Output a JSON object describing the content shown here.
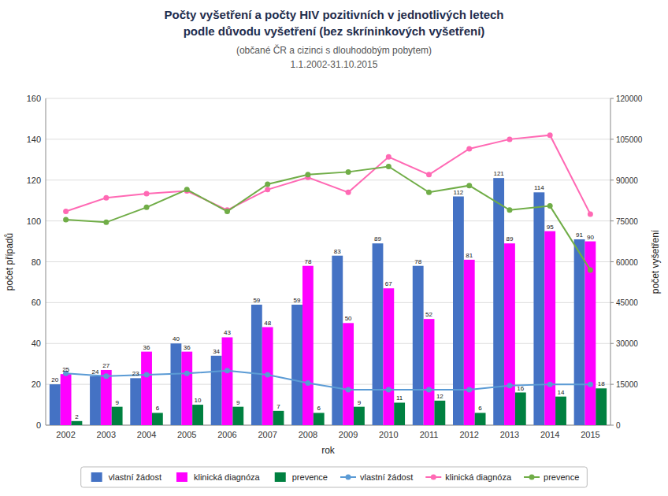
{
  "chart_data": {
    "type": "bar",
    "title": [
      "Počty vyšetření a počty HIV pozitivních v jednotlivých letech",
      "podle důvodu vyšetření (bez skríninkových vyšetření)"
    ],
    "subtitle": [
      "(občané ČR a cizinci s dlouhodobým pobytem)",
      "1.1.2002-31.10.2015"
    ],
    "x_label": "rok",
    "y_label": "počet případů",
    "y2_label": "počet vyšetření",
    "categories": [
      "2002",
      "2003",
      "2004",
      "2005",
      "2006",
      "2007",
      "2008",
      "2009",
      "2010",
      "2011",
      "2012",
      "2013",
      "2014",
      "2015"
    ],
    "series": [
      {
        "name": "vlastní žádost",
        "type": "bar",
        "color": "#4472C4",
        "values": [
          20,
          24,
          23,
          40,
          34,
          59,
          59,
          83,
          89,
          78,
          112,
          121,
          114,
          91
        ]
      },
      {
        "name": "klinická diagnóza",
        "type": "bar",
        "color": "#FF00FF",
        "values": [
          25,
          27,
          36,
          36,
          43,
          48,
          78,
          50,
          67,
          52,
          81,
          89,
          95,
          90
        ]
      },
      {
        "name": "prevence",
        "type": "bar",
        "color": "#008040",
        "values": [
          2,
          9,
          6,
          10,
          9,
          7,
          6,
          9,
          11,
          12,
          6,
          16,
          14,
          18
        ]
      },
      {
        "name": "vlastní žádost",
        "type": "line",
        "axis": "y2",
        "marker": "circle",
        "color": "#5B9BD5",
        "values": [
          19000,
          18000,
          18500,
          19000,
          20000,
          18500,
          15500,
          13000,
          13000,
          13000,
          13000,
          14500,
          15000,
          15000
        ]
      },
      {
        "name": "klinická diagnóza",
        "type": "line",
        "axis": "y2",
        "marker": "circle",
        "color": "#FF69B4",
        "values": [
          78500,
          83500,
          85000,
          86000,
          79000,
          86500,
          91000,
          85500,
          98500,
          92000,
          101500,
          105000,
          106500,
          77500
        ]
      },
      {
        "name": "prevence",
        "type": "line",
        "axis": "y2",
        "marker": "circle",
        "color": "#70AD47",
        "values": [
          75500,
          74500,
          80000,
          86500,
          78500,
          88500,
          92000,
          93000,
          95000,
          85500,
          88000,
          79000,
          80500,
          57000
        ]
      }
    ],
    "ylim": [
      0,
      160
    ],
    "yticks": [
      0,
      20,
      40,
      60,
      80,
      100,
      120,
      140,
      160
    ],
    "y2lim": [
      0,
      120000
    ],
    "y2ticks": [
      0,
      15000,
      30000,
      45000,
      60000,
      75000,
      90000,
      105000,
      120000
    ],
    "grid": true,
    "data_labels": true,
    "legend": "bottom"
  }
}
